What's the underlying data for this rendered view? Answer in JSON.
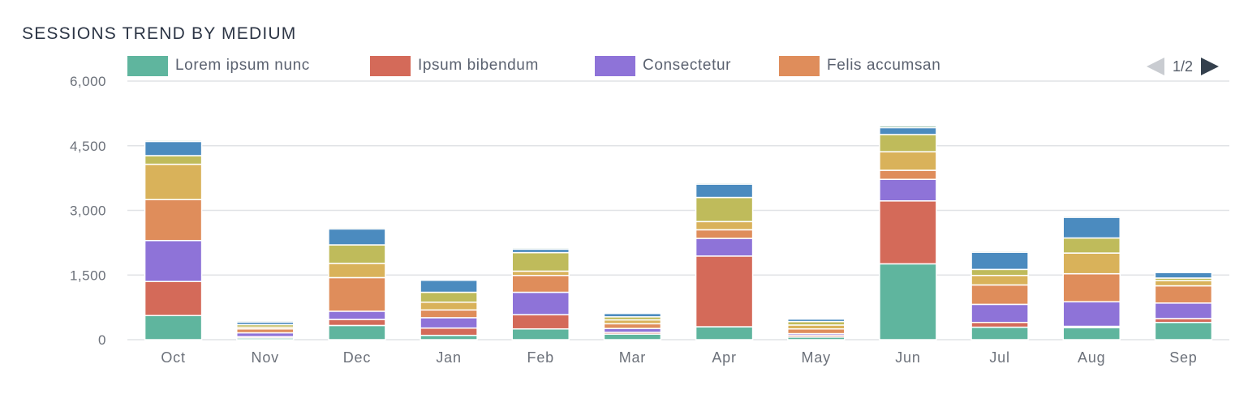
{
  "chart_data": {
    "type": "bar",
    "stacked": true,
    "title": "SESSIONS TREND BY MEDIUM",
    "categories": [
      "Oct",
      "Nov",
      "Dec",
      "Jan",
      "Feb",
      "Mar",
      "Apr",
      "May",
      "Jun",
      "Jul",
      "Aug",
      "Sep"
    ],
    "ylim": [
      0,
      6000
    ],
    "yticks": [
      "0",
      "1,500",
      "3,000",
      "4,500",
      "6,000"
    ],
    "yticks_values": [
      0,
      1500,
      3000,
      4500,
      6000
    ],
    "grid": true,
    "legend_position": "top",
    "series": [
      {
        "name": "Lorem ipsum nunc",
        "color": "#5fb59e",
        "values": [
          560,
          40,
          330,
          100,
          250,
          130,
          300,
          60,
          1760,
          290,
          280,
          400
        ]
      },
      {
        "name": "Ipsum bibendum",
        "color": "#d46a59",
        "values": [
          790,
          30,
          140,
          170,
          330,
          40,
          1640,
          40,
          1460,
          110,
          30,
          90
        ]
      },
      {
        "name": "Consectetur",
        "color": "#8e73d8",
        "values": [
          950,
          90,
          190,
          240,
          520,
          90,
          410,
          40,
          500,
          420,
          570,
          360
        ]
      },
      {
        "name": "Felis accumsan",
        "color": "#df8d5b",
        "values": [
          950,
          90,
          780,
          180,
          390,
          110,
          200,
          110,
          210,
          450,
          650,
          400
        ]
      },
      {
        "name": "",
        "color": "#d9b25a",
        "values": [
          820,
          40,
          330,
          180,
          100,
          90,
          190,
          90,
          430,
          220,
          480,
          120
        ]
      },
      {
        "name": "",
        "color": "#bfbb5b",
        "values": [
          200,
          60,
          430,
          230,
          430,
          70,
          560,
          80,
          400,
          140,
          350,
          60
        ]
      },
      {
        "name": "",
        "color": "#4b8bbf",
        "values": [
          330,
          60,
          370,
          280,
          80,
          80,
          310,
          60,
          160,
          400,
          480,
          130
        ]
      },
      {
        "name": "",
        "color": "#6aa584",
        "values": [
          30,
          30,
          30,
          20,
          30,
          20,
          30,
          20,
          40,
          30,
          30,
          20
        ]
      }
    ]
  },
  "pager": {
    "text": "1/2",
    "prev_color": "#c9ccd1",
    "next_color": "#34404d"
  },
  "colors": {
    "grid": "#e1e3e6",
    "axis_text": "#6c717a",
    "title": "#2c3545"
  }
}
